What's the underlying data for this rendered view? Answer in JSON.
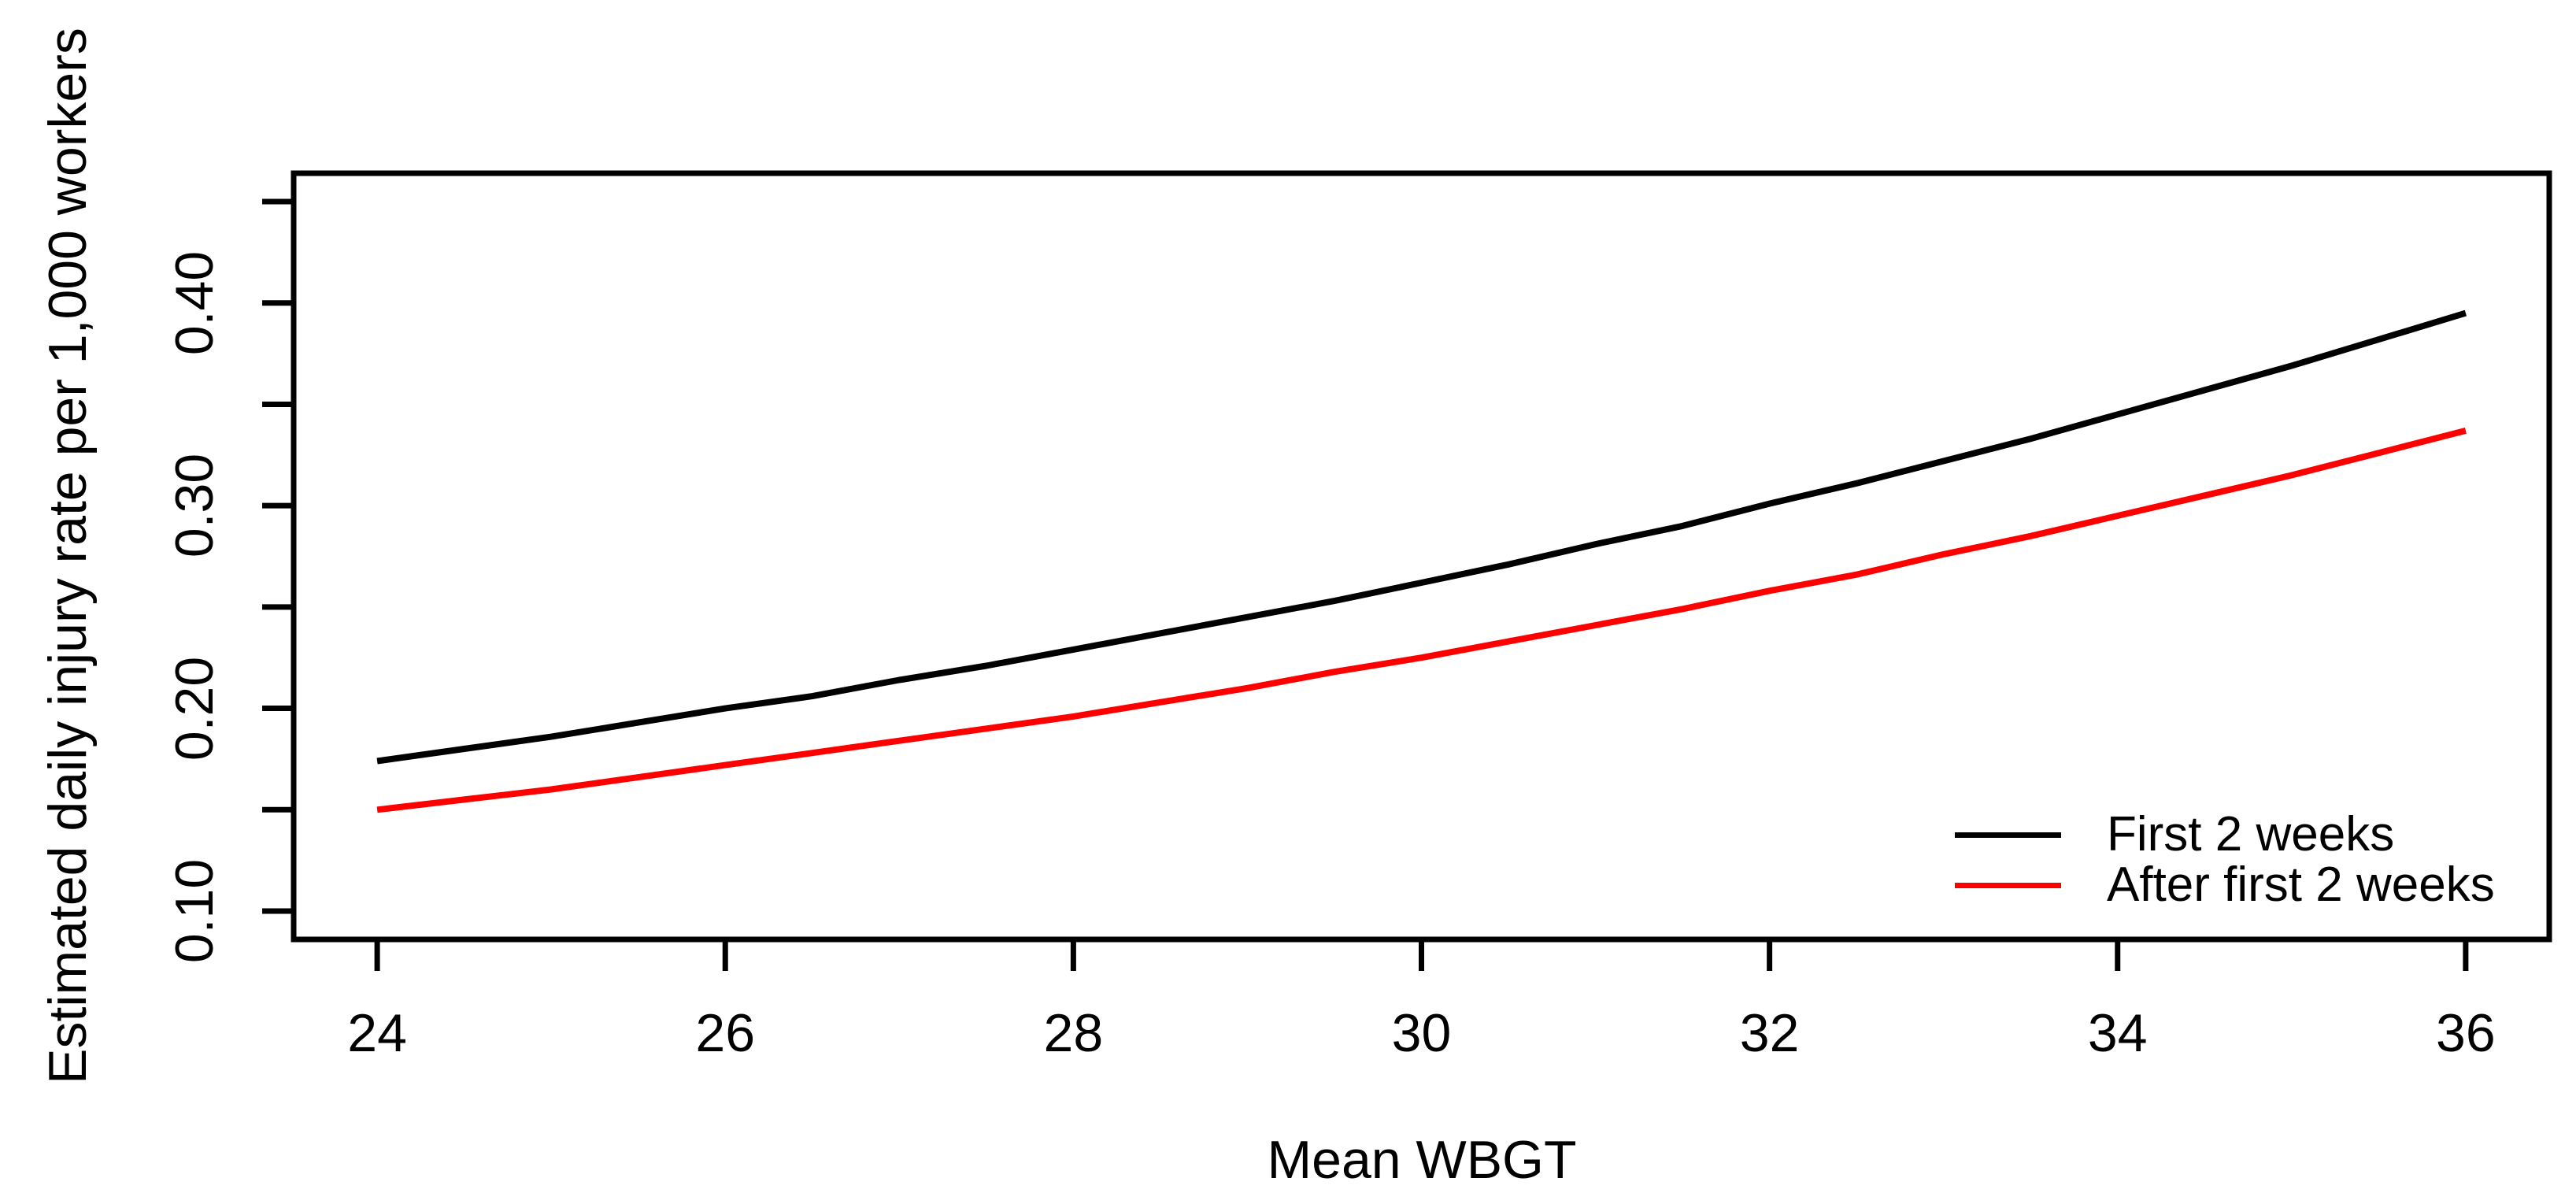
{
  "figure": {
    "background": "#ffffff",
    "text_color": "#000000"
  },
  "chart_data": {
    "type": "line",
    "title": "",
    "xlabel": "Mean WBGT",
    "ylabel": "Estimated daily injury rate per 1,000 workers",
    "xlim": [
      23.52,
      36.48
    ],
    "ylim": [
      0.086,
      0.464
    ],
    "grid": false,
    "x_ticks": [
      {
        "value": 24,
        "label": "24"
      },
      {
        "value": 26,
        "label": "26"
      },
      {
        "value": 28,
        "label": "28"
      },
      {
        "value": 30,
        "label": "30"
      },
      {
        "value": 32,
        "label": "32"
      },
      {
        "value": 34,
        "label": "34"
      },
      {
        "value": 36,
        "label": "36"
      }
    ],
    "y_ticks": [
      {
        "value": 0.1,
        "label": "0.10"
      },
      {
        "value": 0.15,
        "label": ""
      },
      {
        "value": 0.2,
        "label": "0.20"
      },
      {
        "value": 0.25,
        "label": ""
      },
      {
        "value": 0.3,
        "label": "0.30"
      },
      {
        "value": 0.35,
        "label": ""
      },
      {
        "value": 0.4,
        "label": "0.40"
      },
      {
        "value": 0.45,
        "label": ""
      }
    ],
    "x": [
      24,
      24.5,
      25,
      25.5,
      26,
      26.5,
      27,
      27.5,
      28,
      28.5,
      29,
      29.5,
      30,
      30.5,
      31,
      31.5,
      32,
      32.5,
      33,
      33.5,
      34,
      34.5,
      35,
      35.5,
      36
    ],
    "series": [
      {
        "name": "First 2 weeks",
        "color": "#000000",
        "values": [
          0.174,
          0.18,
          0.186,
          0.193,
          0.2,
          0.206,
          0.214,
          0.221,
          0.229,
          0.237,
          0.245,
          0.253,
          0.262,
          0.271,
          0.281,
          0.29,
          0.301,
          0.311,
          0.322,
          0.333,
          0.345,
          0.357,
          0.369,
          0.382,
          0.395
        ]
      },
      {
        "name": "After first 2 weeks",
        "color": "#ff0000",
        "values": [
          0.15,
          0.155,
          0.16,
          0.166,
          0.172,
          0.178,
          0.184,
          0.19,
          0.196,
          0.203,
          0.21,
          0.218,
          0.225,
          0.233,
          0.241,
          0.249,
          0.258,
          0.266,
          0.276,
          0.285,
          0.295,
          0.305,
          0.315,
          0.326,
          0.337
        ]
      }
    ],
    "legend": {
      "position": "bottomright",
      "entries": [
        "First 2 weeks",
        "After first 2 weeks"
      ]
    }
  }
}
